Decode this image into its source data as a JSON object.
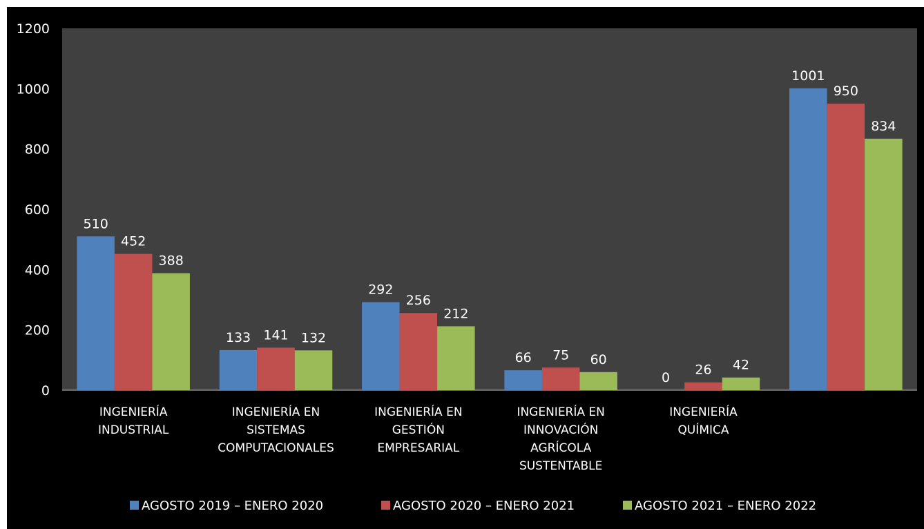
{
  "chart_data": {
    "type": "bar",
    "categories": [
      [
        "INGENIERÍA",
        "INDUSTRIAL"
      ],
      [
        "INGENIERÍA EN",
        "SISTEMAS",
        "COMPUTACIONALES"
      ],
      [
        "INGENIERÍA EN",
        "GESTIÓN",
        "EMPRESARIAL"
      ],
      [
        "INGENIERÍA EN",
        "INNOVACIÓN",
        "AGRÍCOLA",
        "SUSTENTABLE"
      ],
      [
        "INGENIERÍA",
        "QUÍMICA"
      ],
      []
    ],
    "series": [
      {
        "name": "AGOSTO 2019 – ENERO 2020",
        "color": "#4f81bd",
        "values": [
          510,
          133,
          292,
          66,
          0,
          1001
        ]
      },
      {
        "name": "AGOSTO 2020 – ENERO 2021",
        "color": "#c0504d",
        "values": [
          452,
          141,
          256,
          75,
          26,
          950
        ]
      },
      {
        "name": "AGOSTO 2021 – ENERO 2022",
        "color": "#9bbb59",
        "values": [
          388,
          132,
          212,
          60,
          42,
          834
        ]
      }
    ],
    "yticks": [
      "0",
      "200",
      "400",
      "600",
      "800",
      "1000",
      "1200"
    ],
    "ylim": [
      0,
      1200
    ],
    "grid": false,
    "legend": "bottom",
    "plot_background": "#404040",
    "background": "#000000"
  }
}
